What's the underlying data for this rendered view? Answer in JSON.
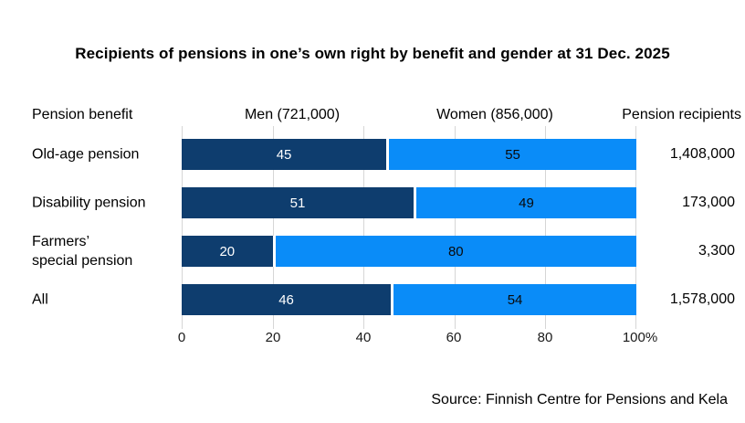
{
  "title": "Recipients of pensions in one’s own right by benefit and gender at 31 Dec. 2025",
  "header": {
    "benefit_label": "Pension benefit",
    "men_label": "Men (721,000)",
    "women_label": "Women (856,000)",
    "recipients_label": "Pension recipients"
  },
  "chart_data": {
    "type": "bar",
    "subtype": "stacked-horizontal-100pct",
    "title": "Recipients of pensions in one’s own right by benefit and gender at 31 Dec. 2025",
    "unit": "%",
    "xlim": [
      0,
      100
    ],
    "x_ticks": [
      "0",
      "20",
      "40",
      "60",
      "80",
      "100%"
    ],
    "grid": true,
    "categories": [
      "Old-age pension",
      "Disability pension",
      "Farmers’\nspecial pension",
      "All"
    ],
    "series": [
      {
        "name": "Men",
        "group_total": "721,000",
        "values": [
          45,
          51,
          20,
          46
        ]
      },
      {
        "name": "Women",
        "group_total": "856,000",
        "values": [
          55,
          49,
          80,
          54
        ]
      }
    ],
    "recipients_totals": [
      "1,408,000",
      "173,000",
      "3,300",
      "1,578,000"
    ]
  },
  "source": "Source: Finnish Centre for Pensions and Kela",
  "colors": {
    "men_bar": "#0e3d6e",
    "women_bar": "#0a8cf8",
    "gridline": "#d6d6d6"
  }
}
